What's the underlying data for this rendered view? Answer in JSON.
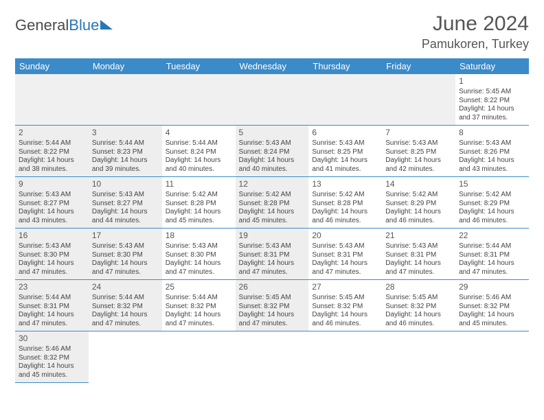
{
  "logo": {
    "part1": "General",
    "part2": "Blue"
  },
  "header": {
    "month": "June 2024",
    "location": "Pamukoren, Turkey"
  },
  "colors": {
    "header_bg": "#3b8bc9",
    "header_fg": "#ffffff",
    "shaded_bg": "#eeeeee",
    "rule": "#3b8bc9",
    "logo_accent": "#2876b8",
    "text": "#444444"
  },
  "dow": [
    "Sunday",
    "Monday",
    "Tuesday",
    "Wednesday",
    "Thursday",
    "Friday",
    "Saturday"
  ],
  "grid": [
    [
      {
        "blank": true
      },
      {
        "blank": true
      },
      {
        "blank": true
      },
      {
        "blank": true
      },
      {
        "blank": true
      },
      {
        "blank": true
      },
      {
        "day": 1,
        "sunrise": "Sunrise: 5:45 AM",
        "sunset": "Sunset: 8:22 PM",
        "day1": "Daylight: 14 hours",
        "day2": "and 37 minutes."
      }
    ],
    [
      {
        "day": 2,
        "shaded": true,
        "sunrise": "Sunrise: 5:44 AM",
        "sunset": "Sunset: 8:22 PM",
        "day1": "Daylight: 14 hours",
        "day2": "and 38 minutes."
      },
      {
        "day": 3,
        "shaded": true,
        "sunrise": "Sunrise: 5:44 AM",
        "sunset": "Sunset: 8:23 PM",
        "day1": "Daylight: 14 hours",
        "day2": "and 39 minutes."
      },
      {
        "day": 4,
        "shaded": false,
        "sunrise": "Sunrise: 5:44 AM",
        "sunset": "Sunset: 8:24 PM",
        "day1": "Daylight: 14 hours",
        "day2": "and 40 minutes."
      },
      {
        "day": 5,
        "shaded": true,
        "sunrise": "Sunrise: 5:43 AM",
        "sunset": "Sunset: 8:24 PM",
        "day1": "Daylight: 14 hours",
        "day2": "and 40 minutes."
      },
      {
        "day": 6,
        "shaded": false,
        "sunrise": "Sunrise: 5:43 AM",
        "sunset": "Sunset: 8:25 PM",
        "day1": "Daylight: 14 hours",
        "day2": "and 41 minutes."
      },
      {
        "day": 7,
        "shaded": false,
        "sunrise": "Sunrise: 5:43 AM",
        "sunset": "Sunset: 8:25 PM",
        "day1": "Daylight: 14 hours",
        "day2": "and 42 minutes."
      },
      {
        "day": 8,
        "shaded": false,
        "sunrise": "Sunrise: 5:43 AM",
        "sunset": "Sunset: 8:26 PM",
        "day1": "Daylight: 14 hours",
        "day2": "and 43 minutes."
      }
    ],
    [
      {
        "day": 9,
        "shaded": true,
        "sunrise": "Sunrise: 5:43 AM",
        "sunset": "Sunset: 8:27 PM",
        "day1": "Daylight: 14 hours",
        "day2": "and 43 minutes."
      },
      {
        "day": 10,
        "shaded": true,
        "sunrise": "Sunrise: 5:43 AM",
        "sunset": "Sunset: 8:27 PM",
        "day1": "Daylight: 14 hours",
        "day2": "and 44 minutes."
      },
      {
        "day": 11,
        "shaded": false,
        "sunrise": "Sunrise: 5:42 AM",
        "sunset": "Sunset: 8:28 PM",
        "day1": "Daylight: 14 hours",
        "day2": "and 45 minutes."
      },
      {
        "day": 12,
        "shaded": true,
        "sunrise": "Sunrise: 5:42 AM",
        "sunset": "Sunset: 8:28 PM",
        "day1": "Daylight: 14 hours",
        "day2": "and 45 minutes."
      },
      {
        "day": 13,
        "shaded": false,
        "sunrise": "Sunrise: 5:42 AM",
        "sunset": "Sunset: 8:28 PM",
        "day1": "Daylight: 14 hours",
        "day2": "and 46 minutes."
      },
      {
        "day": 14,
        "shaded": false,
        "sunrise": "Sunrise: 5:42 AM",
        "sunset": "Sunset: 8:29 PM",
        "day1": "Daylight: 14 hours",
        "day2": "and 46 minutes."
      },
      {
        "day": 15,
        "shaded": false,
        "sunrise": "Sunrise: 5:42 AM",
        "sunset": "Sunset: 8:29 PM",
        "day1": "Daylight: 14 hours",
        "day2": "and 46 minutes."
      }
    ],
    [
      {
        "day": 16,
        "shaded": true,
        "sunrise": "Sunrise: 5:43 AM",
        "sunset": "Sunset: 8:30 PM",
        "day1": "Daylight: 14 hours",
        "day2": "and 47 minutes."
      },
      {
        "day": 17,
        "shaded": true,
        "sunrise": "Sunrise: 5:43 AM",
        "sunset": "Sunset: 8:30 PM",
        "day1": "Daylight: 14 hours",
        "day2": "and 47 minutes."
      },
      {
        "day": 18,
        "shaded": false,
        "sunrise": "Sunrise: 5:43 AM",
        "sunset": "Sunset: 8:30 PM",
        "day1": "Daylight: 14 hours",
        "day2": "and 47 minutes."
      },
      {
        "day": 19,
        "shaded": true,
        "sunrise": "Sunrise: 5:43 AM",
        "sunset": "Sunset: 8:31 PM",
        "day1": "Daylight: 14 hours",
        "day2": "and 47 minutes."
      },
      {
        "day": 20,
        "shaded": false,
        "sunrise": "Sunrise: 5:43 AM",
        "sunset": "Sunset: 8:31 PM",
        "day1": "Daylight: 14 hours",
        "day2": "and 47 minutes."
      },
      {
        "day": 21,
        "shaded": false,
        "sunrise": "Sunrise: 5:43 AM",
        "sunset": "Sunset: 8:31 PM",
        "day1": "Daylight: 14 hours",
        "day2": "and 47 minutes."
      },
      {
        "day": 22,
        "shaded": false,
        "sunrise": "Sunrise: 5:44 AM",
        "sunset": "Sunset: 8:31 PM",
        "day1": "Daylight: 14 hours",
        "day2": "and 47 minutes."
      }
    ],
    [
      {
        "day": 23,
        "shaded": true,
        "sunrise": "Sunrise: 5:44 AM",
        "sunset": "Sunset: 8:31 PM",
        "day1": "Daylight: 14 hours",
        "day2": "and 47 minutes."
      },
      {
        "day": 24,
        "shaded": true,
        "sunrise": "Sunrise: 5:44 AM",
        "sunset": "Sunset: 8:32 PM",
        "day1": "Daylight: 14 hours",
        "day2": "and 47 minutes."
      },
      {
        "day": 25,
        "shaded": false,
        "sunrise": "Sunrise: 5:44 AM",
        "sunset": "Sunset: 8:32 PM",
        "day1": "Daylight: 14 hours",
        "day2": "and 47 minutes."
      },
      {
        "day": 26,
        "shaded": true,
        "sunrise": "Sunrise: 5:45 AM",
        "sunset": "Sunset: 8:32 PM",
        "day1": "Daylight: 14 hours",
        "day2": "and 47 minutes."
      },
      {
        "day": 27,
        "shaded": false,
        "sunrise": "Sunrise: 5:45 AM",
        "sunset": "Sunset: 8:32 PM",
        "day1": "Daylight: 14 hours",
        "day2": "and 46 minutes."
      },
      {
        "day": 28,
        "shaded": false,
        "sunrise": "Sunrise: 5:45 AM",
        "sunset": "Sunset: 8:32 PM",
        "day1": "Daylight: 14 hours",
        "day2": "and 46 minutes."
      },
      {
        "day": 29,
        "shaded": false,
        "sunrise": "Sunrise: 5:46 AM",
        "sunset": "Sunset: 8:32 PM",
        "day1": "Daylight: 14 hours",
        "day2": "and 45 minutes."
      }
    ],
    [
      {
        "day": 30,
        "shaded": true,
        "sunrise": "Sunrise: 5:46 AM",
        "sunset": "Sunset: 8:32 PM",
        "day1": "Daylight: 14 hours",
        "day2": "and 45 minutes."
      },
      {
        "blank": true
      },
      {
        "blank": true
      },
      {
        "blank": true
      },
      {
        "blank": true
      },
      {
        "blank": true
      },
      {
        "blank": true
      }
    ]
  ]
}
